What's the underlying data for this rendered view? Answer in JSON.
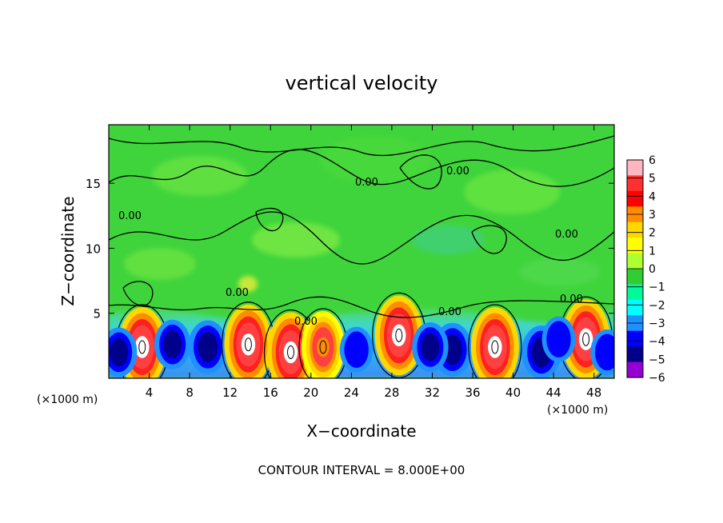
{
  "chart_data": {
    "type": "heatmap",
    "title": "vertical velocity",
    "xlabel": "X−coordinate",
    "ylabel": "Z−coordinate",
    "x_unit_left": "(×1000 m)",
    "x_unit_right": "(×1000 m)",
    "footer": "CONTOUR INTERVAL = 8.000E+00",
    "contour_label": "0.00",
    "xlim": [
      0,
      50
    ],
    "ylim": [
      0,
      19.5
    ],
    "x_ticks": [
      "4",
      "8",
      "12",
      "16",
      "20",
      "24",
      "28",
      "32",
      "36",
      "40",
      "44",
      "48"
    ],
    "y_ticks": [
      "5",
      "10",
      "15"
    ],
    "colorbar": {
      "range": [
        -6,
        6
      ],
      "tick_labels": [
        "6",
        "5",
        "4",
        "3",
        "2",
        "1",
        "0",
        "−1",
        "−2",
        "−3",
        "−4",
        "−5",
        "−6"
      ],
      "colors": [
        "#ffb6c1",
        "#ff3030",
        "#ff0000",
        "#ff8c00",
        "#ffd700",
        "#ffff00",
        "#adff2f",
        "#32cd32",
        "#00fa9a",
        "#00ffff",
        "#1e90ff",
        "#0000ff",
        "#00008b",
        "#9400d3"
      ]
    },
    "cells": [
      {
        "x": 3.3,
        "z": 2.4,
        "value": 6
      },
      {
        "x": 9.8,
        "z": 2.4,
        "value": -5
      },
      {
        "x": 13.8,
        "z": 2.6,
        "value": 6
      },
      {
        "x": 18.0,
        "z": 2.0,
        "value": 6
      },
      {
        "x": 21.2,
        "z": 2.4,
        "value": 3
      },
      {
        "x": 28.7,
        "z": 3.3,
        "value": 6
      },
      {
        "x": 34.0,
        "z": 2.2,
        "value": -5
      },
      {
        "x": 38.2,
        "z": 2.4,
        "value": 6
      },
      {
        "x": 42.8,
        "z": 2.0,
        "value": -5
      },
      {
        "x": 47.2,
        "z": 3.0,
        "value": 6
      },
      {
        "x": 1.0,
        "z": 2.0,
        "value": -4
      },
      {
        "x": 6.3,
        "z": 2.6,
        "value": -4
      },
      {
        "x": 24.5,
        "z": 2.2,
        "value": -3
      },
      {
        "x": 31.8,
        "z": 2.4,
        "value": -4
      },
      {
        "x": 44.5,
        "z": 3.0,
        "value": -3
      },
      {
        "x": 49.3,
        "z": 2.0,
        "value": -3
      }
    ]
  }
}
